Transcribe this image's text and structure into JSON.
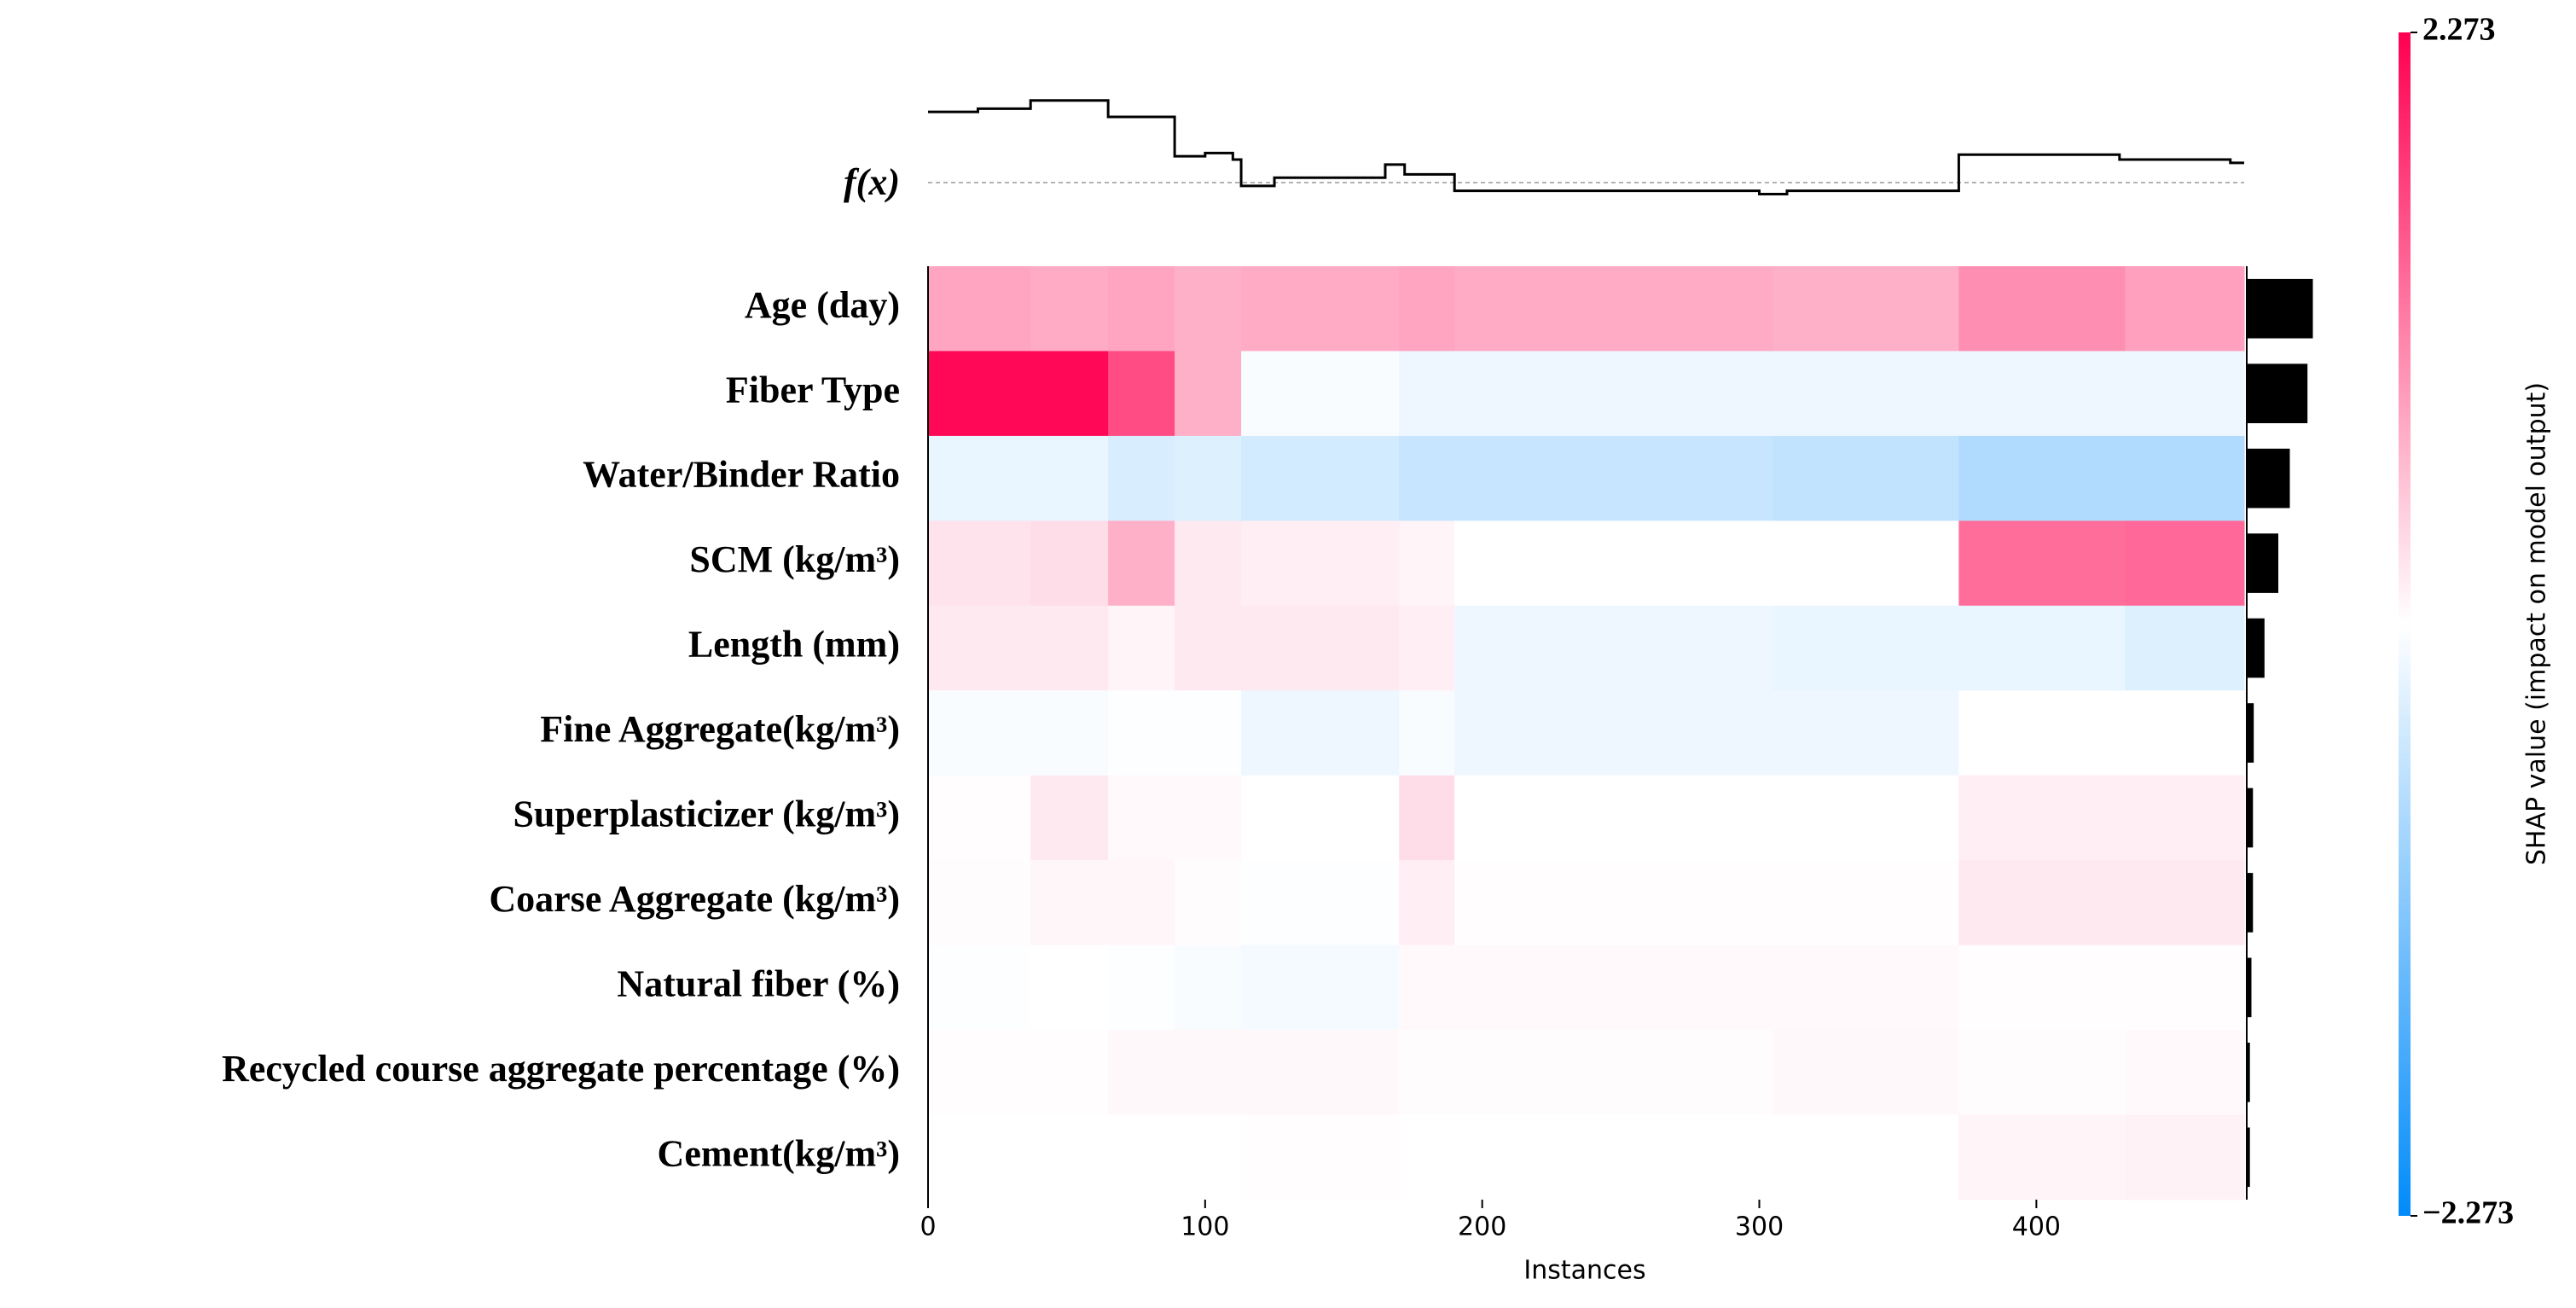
{
  "chart_data": {
    "type": "heatmap",
    "fx_label": "f(x)",
    "xlabel": "Instances",
    "colorbar_label": "SHAP value (impact on model output)",
    "xlim": [
      0,
      475
    ],
    "xticks": [
      0,
      100,
      200,
      300,
      400
    ],
    "clim": [
      -2.273,
      2.273
    ],
    "cticks": [
      {
        "value": 2.273,
        "label": "2.273"
      },
      {
        "value": -2.273,
        "label": "−2.273"
      }
    ],
    "colors": {
      "low": "#008bfb",
      "mid": "#ffffff",
      "high": "#ff0051"
    },
    "segment_edges": [
      0,
      37,
      65,
      89,
      113,
      170,
      190,
      305,
      372,
      432,
      475
    ],
    "rows": [
      {
        "name": "Age (day)",
        "values": [
          0.8,
          0.75,
          0.8,
          0.7,
          0.75,
          0.8,
          0.75,
          0.7,
          1.0,
          0.85
        ],
        "importance": 0.85
      },
      {
        "name": "Fiber Type",
        "values": [
          2.2,
          2.2,
          1.6,
          0.7,
          -0.05,
          -0.15,
          -0.15,
          -0.15,
          -0.15,
          -0.15
        ],
        "importance": 0.78
      },
      {
        "name": "Water/Binder Ratio",
        "values": [
          -0.2,
          -0.2,
          -0.35,
          -0.3,
          -0.4,
          -0.5,
          -0.5,
          -0.55,
          -0.7,
          -0.7
        ],
        "importance": 0.55
      },
      {
        "name": "SCM (kg/m³)",
        "values": [
          0.25,
          0.3,
          0.7,
          0.2,
          0.15,
          0.1,
          0.0,
          0.0,
          1.3,
          1.35
        ],
        "importance": 0.4
      },
      {
        "name": "Length (mm)",
        "values": [
          0.2,
          0.2,
          0.1,
          0.2,
          0.2,
          0.15,
          -0.15,
          -0.2,
          -0.2,
          -0.3
        ],
        "importance": 0.22
      },
      {
        "name": "Fine Aggregate(kg/m³)",
        "values": [
          -0.05,
          -0.05,
          -0.02,
          -0.02,
          -0.15,
          -0.05,
          -0.15,
          -0.15,
          0.0,
          0.0
        ],
        "importance": 0.08
      },
      {
        "name": "Superplasticizer (kg/m³)",
        "values": [
          0.02,
          0.2,
          0.05,
          0.05,
          0.0,
          0.3,
          0.0,
          0.0,
          0.15,
          0.15
        ],
        "importance": 0.07
      },
      {
        "name": "Coarse Aggregate (kg/m³)",
        "values": [
          0.03,
          0.08,
          0.08,
          0.03,
          -0.02,
          0.15,
          0.02,
          0.02,
          0.2,
          0.2
        ],
        "importance": 0.07
      },
      {
        "name": "Natural fiber (%)",
        "values": [
          -0.02,
          0.0,
          -0.02,
          -0.05,
          -0.1,
          0.05,
          0.05,
          0.05,
          0.02,
          0.02
        ],
        "importance": 0.05
      },
      {
        "name": "Recycled course aggregate percentage (%)",
        "values": [
          0.02,
          0.02,
          0.06,
          0.06,
          0.06,
          0.03,
          0.03,
          0.06,
          0.03,
          0.05
        ],
        "importance": 0.03
      },
      {
        "name": "Cement(kg/m³)",
        "values": [
          0.0,
          0.0,
          0.0,
          0.0,
          0.02,
          0.0,
          0.0,
          0.0,
          0.1,
          0.12
        ],
        "importance": 0.03
      }
    ],
    "fx": {
      "x": [
        0,
        18,
        37,
        65,
        89,
        100,
        110,
        113,
        125,
        165,
        172,
        190,
        300,
        310,
        372,
        430,
        470,
        475
      ],
      "values": [
        4.3,
        4.5,
        5.0,
        4.0,
        1.6,
        1.8,
        1.4,
        -0.2,
        0.3,
        1.1,
        0.5,
        -0.5,
        -0.7,
        -0.5,
        1.7,
        1.4,
        1.2,
        1.2
      ]
    }
  }
}
